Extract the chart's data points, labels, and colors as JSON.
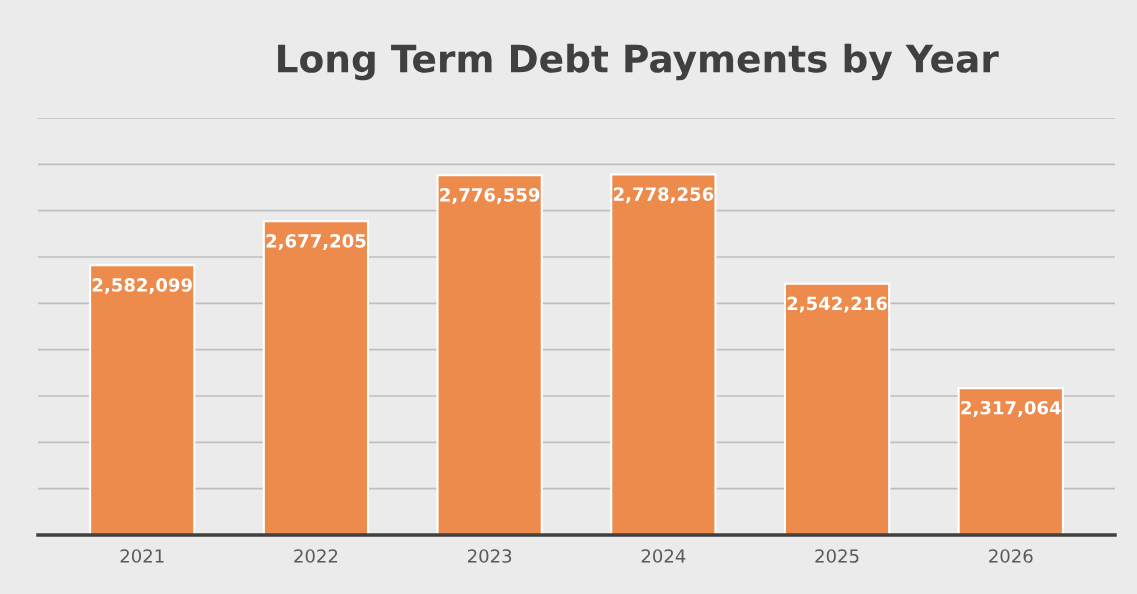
{
  "chart_data": {
    "type": "bar",
    "title": "Long Term Debt Payments by Year",
    "categories": [
      "2021",
      "2022",
      "2023",
      "2024",
      "2025",
      "2026"
    ],
    "values": [
      2582099,
      2677205,
      2776559,
      2778256,
      2542216,
      2317064
    ],
    "value_labels": [
      "2,582,099",
      "2,677,205",
      "2,776,559",
      "2,778,256",
      "2,542,216",
      "2,317,064"
    ],
    "color": "#ed8b4d",
    "ylim": [
      2000000,
      2900000
    ],
    "yticks": [
      {
        "value": 2000000,
        "label": null
      },
      {
        "value": 2100000,
        "label": null
      },
      {
        "value": 2200000,
        "label": null
      },
      {
        "value": 2300000,
        "label": null
      },
      {
        "value": 2400000,
        "label": null
      },
      {
        "value": 2500000,
        "label": null
      },
      {
        "value": 2600000,
        "label": null
      },
      {
        "value": 2700000,
        "label": null
      },
      {
        "value": 2800000,
        "label": null
      },
      {
        "value": 2900000,
        "label": null
      }
    ],
    "tick_labels": "x",
    "grid": "y",
    "legend": false
  }
}
